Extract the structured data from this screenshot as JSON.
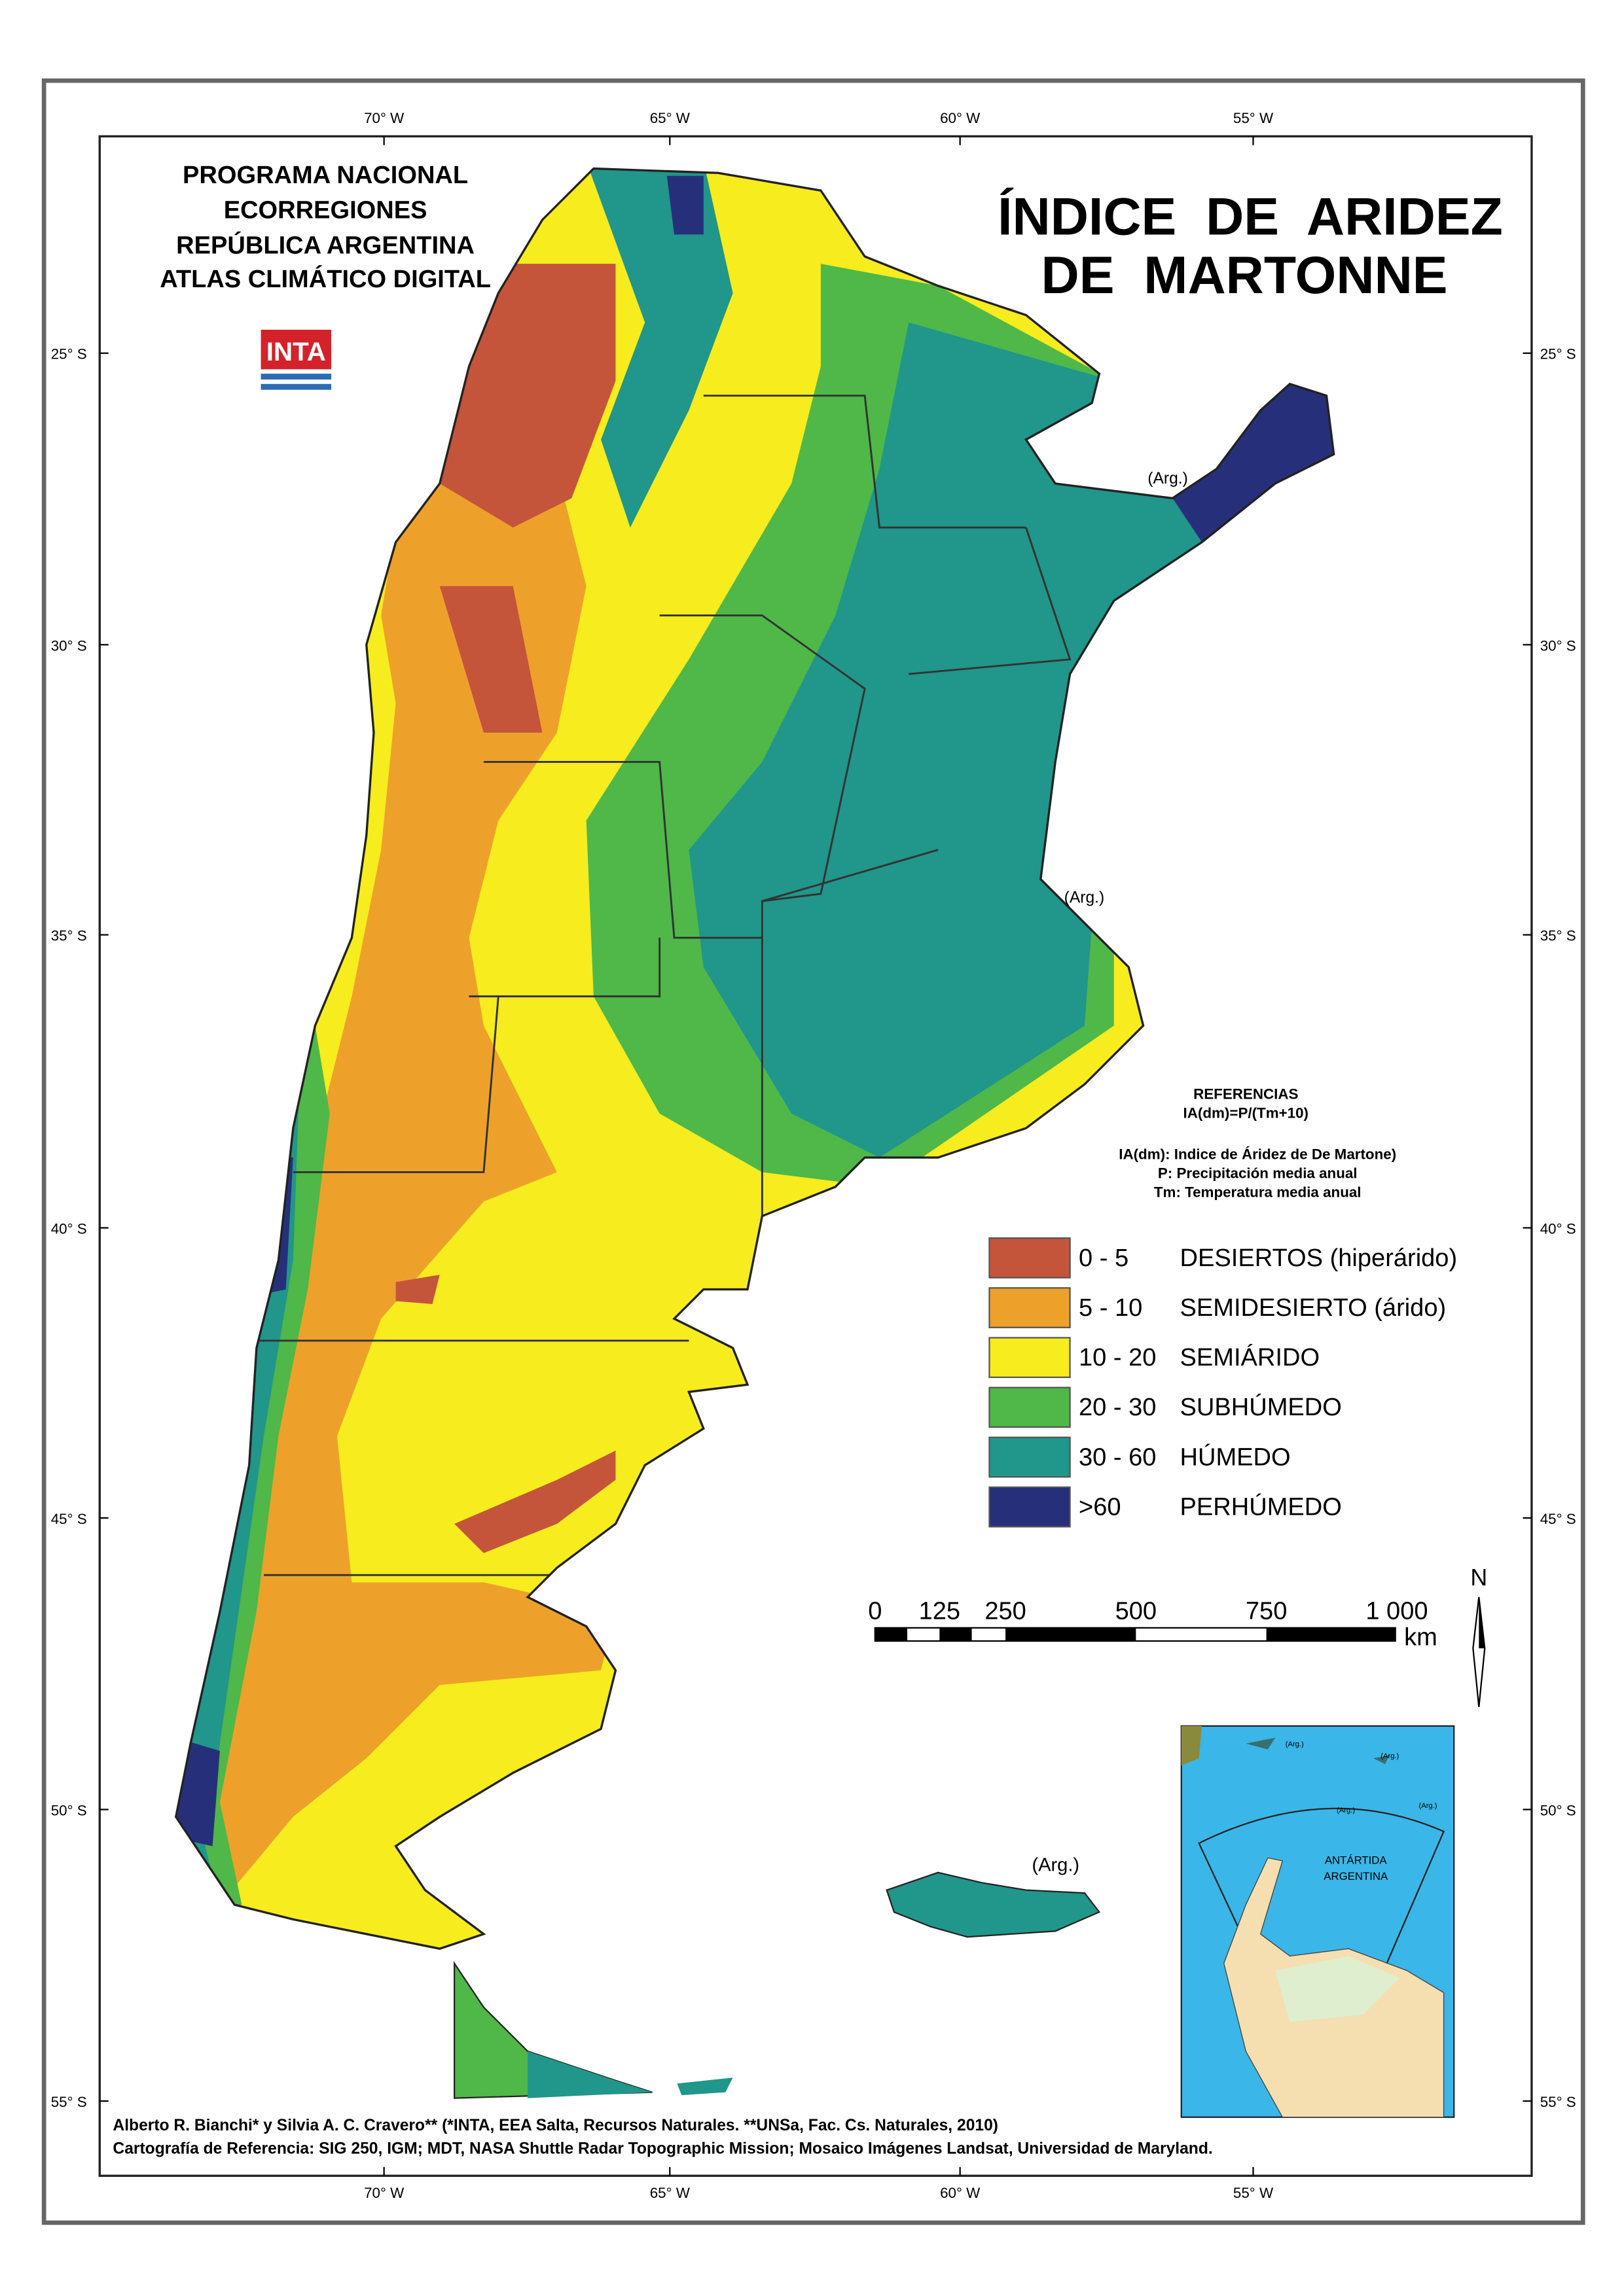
{
  "header": {
    "lines": [
      "PROGRAMA NACIONAL",
      "ECORREGIONES",
      "REPÚBLICA ARGENTINA",
      "ATLAS CLIMÁTICO DIGITAL"
    ],
    "logo": "INTA"
  },
  "title": [
    "ÍNDICE  DE  ARIDEZ",
    "DE  MARTONNE"
  ],
  "graticule": {
    "longitudes": [
      "70° W",
      "65° W",
      "60° W",
      "55° W"
    ],
    "latitudes": [
      "25° S",
      "30° S",
      "35° S",
      "40° S",
      "45° S",
      "50° S",
      "55° S"
    ]
  },
  "references": {
    "heading": "REFERENCIAS",
    "formula": "IA(dm)=P/(Tm+10)",
    "notes": [
      "IA(dm): Indice de Áridez de De Martone)",
      "P: Precipitación media anual",
      "Tm: Temperatura media anual"
    ]
  },
  "legend": [
    {
      "range": "0 - 5",
      "label": "DESIERTOS (hiperárido)",
      "color": "#c4553b"
    },
    {
      "range": "5 - 10",
      "label": "SEMIDESIERTO (árido)",
      "color": "#eda12a"
    },
    {
      "range": "10 - 20",
      "label": "SEMIÁRIDO",
      "color": "#f6ec1e"
    },
    {
      "range": "20 - 30",
      "label": "SUBHÚMEDO",
      "color": "#4fb848"
    },
    {
      "range": "30 - 60",
      "label": "HÚMEDO",
      "color": "#21968a"
    },
    {
      "range": ">60",
      "label": "PERHÚMEDO",
      "color": "#26307a"
    }
  ],
  "scale_bar": {
    "labels": [
      "0",
      "125",
      "250",
      "500",
      "750",
      "1 000"
    ],
    "unit": "km"
  },
  "north": "N",
  "map_labels": [
    "(Arg.)",
    "(Arg.)",
    "(Arg.)"
  ],
  "inset": {
    "label": [
      "ANTÁRTIDA",
      "ARGENTINA"
    ],
    "arg_label": "(Arg.)"
  },
  "credits": [
    "Alberto R. Bianchi* y Silvia A. C. Cravero** (*INTA, EEA Salta, Recursos Naturales. **UNSa, Fac. Cs. Naturales, 2010)",
    "Cartografía de Referencia: SIG 250, IGM; MDT, NASA Shuttle Radar Topographic Mission; Mosaico Imágenes Landsat, Universidad de Maryland."
  ]
}
